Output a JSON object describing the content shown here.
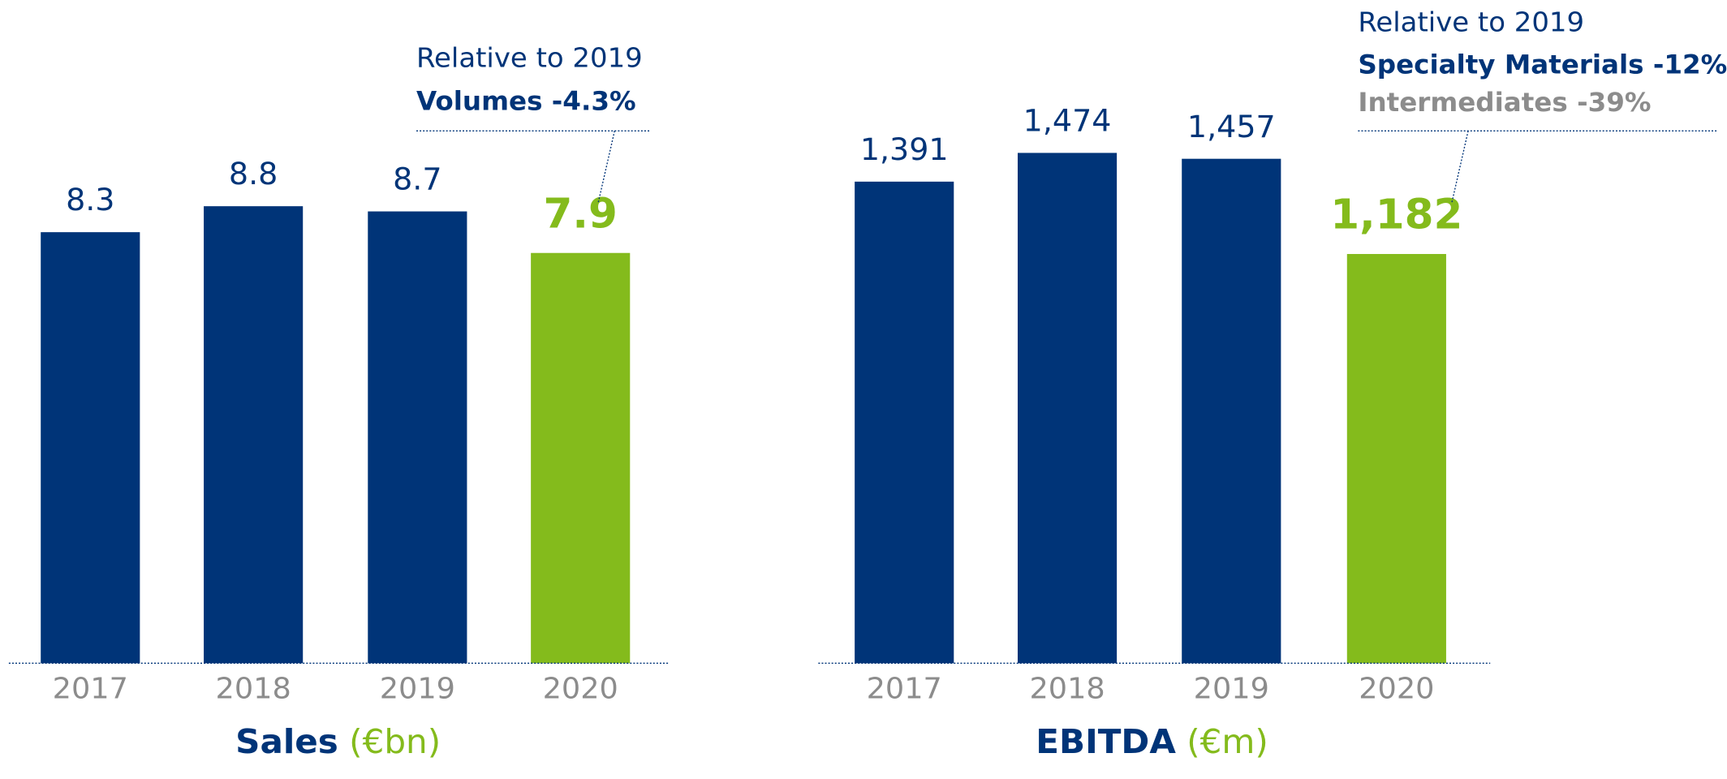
{
  "chart_data": [
    {
      "type": "bar",
      "title": "Sales",
      "unit": "(€bn)",
      "categories": [
        "2017",
        "2018",
        "2019",
        "2020"
      ],
      "values": [
        8.3,
        8.8,
        8.7,
        7.9
      ],
      "colors": [
        "#003478",
        "#003478",
        "#003478",
        "#84bb1c"
      ],
      "ylim": [
        0,
        10
      ],
      "annotation": {
        "heading": "Relative to 2019",
        "lines": [
          {
            "text": "Volumes -4.3%",
            "color": "#003478"
          }
        ]
      }
    },
    {
      "type": "bar",
      "title": "EBITDA",
      "unit": "(€m)",
      "categories": [
        "2017",
        "2018",
        "2019",
        "2020"
      ],
      "values": [
        1391,
        1474,
        1457,
        1182
      ],
      "value_labels": [
        "1,391",
        "1,474",
        "1,457",
        "1,182"
      ],
      "colors": [
        "#003478",
        "#003478",
        "#003478",
        "#84bb1c"
      ],
      "ylim": [
        0,
        1500
      ],
      "annotation": {
        "heading": "Relative to 2019",
        "lines": [
          {
            "text": "Specialty Materials -12%",
            "color": "#003478"
          },
          {
            "text": "Intermediates -39%",
            "color": "#8c8c8c"
          }
        ]
      }
    }
  ]
}
